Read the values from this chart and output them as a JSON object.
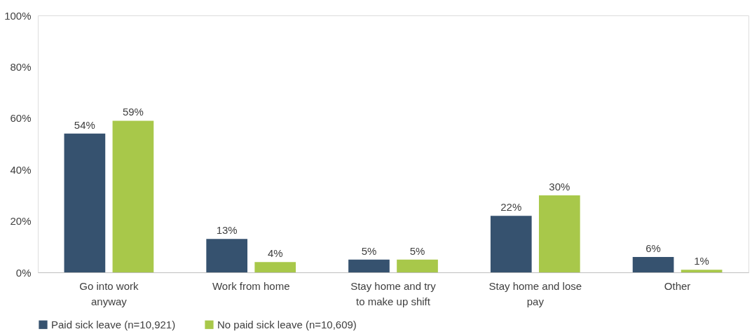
{
  "chart_data": {
    "type": "bar",
    "categories": [
      "Go into work anyway",
      "Work from home",
      "Stay home and try to make up shift",
      "Stay home and lose pay",
      "Other"
    ],
    "series": [
      {
        "name": "Paid sick leave (n=10,921)",
        "color": "#36526f",
        "values": [
          54,
          13,
          5,
          22,
          6
        ],
        "value_labels": [
          "54%",
          "13%",
          "5%",
          "22%",
          "6%"
        ]
      },
      {
        "name": "No paid sick leave (n=10,609)",
        "color": "#a8c84a",
        "values": [
          59,
          4,
          5,
          30,
          1
        ],
        "value_labels": [
          "59%",
          "4%",
          "5%",
          "30%",
          "1%"
        ]
      }
    ],
    "ylim": [
      0,
      100
    ],
    "yticks": [
      {
        "value": 0,
        "label": "0%"
      },
      {
        "value": 20,
        "label": "20%"
      },
      {
        "value": 40,
        "label": "40%"
      },
      {
        "value": 60,
        "label": "60%"
      },
      {
        "value": 80,
        "label": "80%"
      },
      {
        "value": 100,
        "label": "100%"
      }
    ],
    "grid": false,
    "legend": "bottom"
  }
}
